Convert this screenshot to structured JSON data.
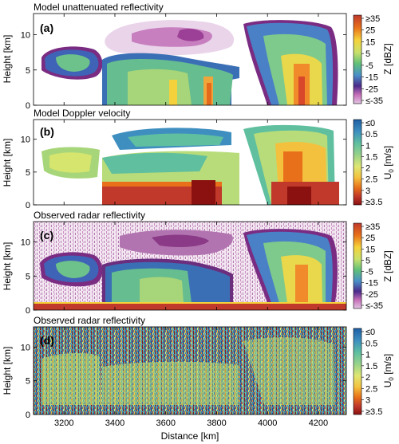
{
  "chart_data": [
    {
      "type": "heatmap",
      "panel": "(a)",
      "title": "Model unattenuated reflectivity",
      "ylabel": "Height [km]",
      "ylim": [
        0,
        13
      ],
      "xlim": [
        3080,
        4310
      ],
      "yticks": [
        0,
        5,
        10
      ],
      "xticks": [
        3200,
        3400,
        3600,
        3800,
        4000,
        4200
      ],
      "colorbar": {
        "label": "Z [dBZ]",
        "ticks": [
          "≥35",
          "25",
          "15",
          "5",
          "-5",
          "-15",
          "-25",
          "≤-35"
        ],
        "colors": [
          "#c0392b",
          "#e8701a",
          "#f5d23b",
          "#c9e06a",
          "#5fbf79",
          "#4a8fc9",
          "#4b2a8a",
          "#c66fb8",
          "#e3c4e3"
        ]
      },
      "features": [
        {
          "name": "anvil-left",
          "x": [
            3110,
            3250
          ],
          "y": [
            3.5,
            8.5
          ]
        },
        {
          "name": "upper-cloud",
          "x": [
            3390,
            3800
          ],
          "y": [
            6.5,
            12.5
          ]
        },
        {
          "name": "mid-cloud",
          "x": [
            3360,
            3790
          ],
          "y": [
            0,
            8.5
          ]
        },
        {
          "name": "deep-convection",
          "x": [
            3950,
            4290
          ],
          "y": [
            0,
            12.5
          ]
        }
      ]
    },
    {
      "type": "heatmap",
      "panel": "(b)",
      "title": "Model Doppler velocity",
      "ylabel": "Height [km]",
      "ylim": [
        0,
        13
      ],
      "xlim": [
        3080,
        4310
      ],
      "yticks": [
        0,
        5,
        10
      ],
      "xticks": [
        3200,
        3400,
        3600,
        3800,
        4000,
        4200
      ],
      "colorbar": {
        "label": "U0 [m/s]",
        "label_main": "U",
        "label_sub": "0",
        "label_unit": " [m/s]",
        "ticks": [
          "≤0",
          "0.5",
          "1",
          "1.5",
          "2",
          "2.5",
          "3",
          "≥3.5"
        ],
        "colors": [
          "#1f5fa5",
          "#3d8fbf",
          "#5fbf9f",
          "#9ad38a",
          "#dfe773",
          "#f3c13e",
          "#e8701a",
          "#c0392b",
          "#8b1010"
        ]
      }
    },
    {
      "type": "heatmap",
      "panel": "(c)",
      "title": "Observed radar reflectivity",
      "ylabel": "Height [km]",
      "ylim": [
        0,
        13
      ],
      "xlim": [
        3080,
        4310
      ],
      "yticks": [
        0,
        5,
        10
      ],
      "xticks": [
        3200,
        3400,
        3600,
        3800,
        4000,
        4200
      ],
      "colorbar": {
        "label": "Z [dBZ]",
        "ticks": [
          "≥35",
          "25",
          "15",
          "5",
          "-5",
          "-15",
          "-25",
          "≤-35"
        ],
        "colors": [
          "#c0392b",
          "#e8701a",
          "#f5d23b",
          "#c9e06a",
          "#5fbf79",
          "#4a8fc9",
          "#4b2a8a",
          "#c66fb8",
          "#e3c4e3"
        ]
      }
    },
    {
      "type": "heatmap",
      "panel": "(d)",
      "title": "Observed radar reflectivity",
      "ylabel": "Height [km]",
      "xlabel": "Distance [km]",
      "ylim": [
        0,
        13
      ],
      "xlim": [
        3080,
        4310
      ],
      "yticks": [
        0,
        5,
        10
      ],
      "xticks": [
        3200,
        3400,
        3600,
        3800,
        4000,
        4200
      ],
      "colorbar": {
        "label": "U0 [m/s]",
        "label_main": "U",
        "label_sub": "0",
        "label_unit": " [m/s]",
        "ticks": [
          "≤0",
          "0.5",
          "1",
          "1.5",
          "2",
          "2.5",
          "3",
          "≥3.5"
        ],
        "colors": [
          "#1f5fa5",
          "#3d8fbf",
          "#5fbf9f",
          "#9ad38a",
          "#dfe773",
          "#f3c13e",
          "#e8701a",
          "#c0392b",
          "#8b1010"
        ]
      }
    }
  ]
}
